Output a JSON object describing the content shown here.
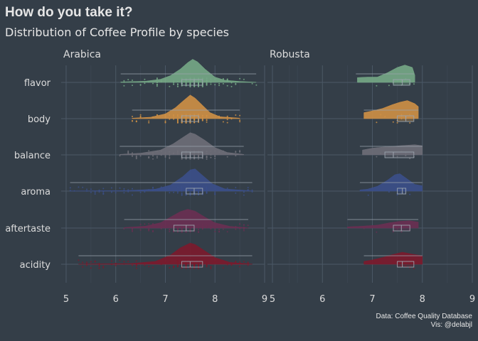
{
  "header": {
    "title": "How do you take it?",
    "subtitle": "Distribution of Coffee Profile by species"
  },
  "caption": {
    "line1": "Data: Coffee Quality Database",
    "line2": "Vis: @delabjl"
  },
  "chart_data": {
    "type": "raincloud",
    "facets": [
      "Arabica",
      "Robusta"
    ],
    "categories": [
      "flavor",
      "body",
      "balance",
      "aroma",
      "aftertaste",
      "acidity"
    ],
    "xlim": [
      4.9,
      9
    ],
    "x_ticks": [
      5,
      6,
      7,
      8,
      9
    ],
    "grid": true,
    "colors": {
      "flavor": "#76a886",
      "body": "#cf9045",
      "balance": "#6e6e78",
      "aroma": "#3b4f8a",
      "aftertaste": "#6a2f52",
      "acidity": "#7c1a2c"
    },
    "panels": [
      {
        "name": "Arabica",
        "series": [
          {
            "name": "flavor",
            "min": 6.1,
            "q1": 7.33,
            "median": 7.58,
            "q3": 7.75,
            "max": 8.83,
            "density": [
              [
                6.1,
                0.02
              ],
              [
                6.6,
                0.05
              ],
              [
                6.9,
                0.13
              ],
              [
                7.1,
                0.28
              ],
              [
                7.3,
                0.55
              ],
              [
                7.45,
                0.82
              ],
              [
                7.55,
                0.96
              ],
              [
                7.65,
                0.85
              ],
              [
                7.8,
                0.55
              ],
              [
                8.0,
                0.22
              ],
              [
                8.2,
                0.09
              ],
              [
                8.5,
                0.04
              ],
              [
                8.83,
                0.01
              ]
            ]
          },
          {
            "name": "body",
            "min": 6.33,
            "q1": 7.33,
            "median": 7.5,
            "q3": 7.67,
            "max": 8.5,
            "density": [
              [
                6.33,
                0.02
              ],
              [
                6.7,
                0.06
              ],
              [
                7.0,
                0.2
              ],
              [
                7.2,
                0.45
              ],
              [
                7.35,
                0.72
              ],
              [
                7.5,
                0.98
              ],
              [
                7.6,
                0.85
              ],
              [
                7.75,
                0.55
              ],
              [
                7.9,
                0.25
              ],
              [
                8.1,
                0.08
              ],
              [
                8.5,
                0.02
              ]
            ]
          },
          {
            "name": "balance",
            "min": 6.08,
            "q1": 7.33,
            "median": 7.5,
            "q3": 7.75,
            "max": 8.58,
            "density": [
              [
                6.08,
                0.02
              ],
              [
                6.5,
                0.07
              ],
              [
                6.9,
                0.2
              ],
              [
                7.15,
                0.45
              ],
              [
                7.35,
                0.72
              ],
              [
                7.5,
                0.92
              ],
              [
                7.6,
                0.86
              ],
              [
                7.8,
                0.6
              ],
              [
                8.0,
                0.3
              ],
              [
                8.25,
                0.1
              ],
              [
                8.58,
                0.02
              ]
            ]
          },
          {
            "name": "aroma",
            "min": 5.08,
            "q1": 7.42,
            "median": 7.58,
            "q3": 7.75,
            "max": 8.75,
            "density": [
              [
                5.08,
                0.01
              ],
              [
                6.2,
                0.02
              ],
              [
                6.8,
                0.08
              ],
              [
                7.1,
                0.25
              ],
              [
                7.35,
                0.6
              ],
              [
                7.5,
                0.88
              ],
              [
                7.6,
                0.92
              ],
              [
                7.75,
                0.65
              ],
              [
                7.95,
                0.3
              ],
              [
                8.2,
                0.09
              ],
              [
                8.75,
                0.01
              ]
            ]
          },
          {
            "name": "aftertaste",
            "min": 6.17,
            "q1": 7.17,
            "median": 7.42,
            "q3": 7.58,
            "max": 8.67,
            "density": [
              [
                6.17,
                0.02
              ],
              [
                6.6,
                0.08
              ],
              [
                6.9,
                0.22
              ],
              [
                7.1,
                0.45
              ],
              [
                7.3,
                0.68
              ],
              [
                7.45,
                0.78
              ],
              [
                7.6,
                0.7
              ],
              [
                7.8,
                0.45
              ],
              [
                8.0,
                0.22
              ],
              [
                8.3,
                0.07
              ],
              [
                8.67,
                0.01
              ]
            ]
          },
          {
            "name": "acidity",
            "min": 5.25,
            "q1": 7.33,
            "median": 7.5,
            "q3": 7.75,
            "max": 8.75,
            "density": [
              [
                5.25,
                0.01
              ],
              [
                6.3,
                0.03
              ],
              [
                6.8,
                0.12
              ],
              [
                7.1,
                0.38
              ],
              [
                7.3,
                0.68
              ],
              [
                7.5,
                0.88
              ],
              [
                7.6,
                0.82
              ],
              [
                7.8,
                0.55
              ],
              [
                8.0,
                0.28
              ],
              [
                8.3,
                0.08
              ],
              [
                8.75,
                0.01
              ]
            ]
          }
        ]
      },
      {
        "name": "Robusta",
        "series": [
          {
            "name": "flavor",
            "min": 6.67,
            "q1": 7.42,
            "median": 7.6,
            "q3": 7.75,
            "max": 7.83,
            "density": [
              [
                6.7,
                0.2
              ],
              [
                6.9,
                0.22
              ],
              [
                7.1,
                0.22
              ],
              [
                7.3,
                0.4
              ],
              [
                7.5,
                0.62
              ],
              [
                7.65,
                0.72
              ],
              [
                7.8,
                0.62
              ],
              [
                7.85,
                0.3
              ]
            ]
          },
          {
            "name": "body",
            "min": 6.83,
            "q1": 7.5,
            "median": 7.67,
            "q3": 7.83,
            "max": 7.92,
            "density": [
              [
                6.83,
                0.25
              ],
              [
                7.0,
                0.32
              ],
              [
                7.2,
                0.42
              ],
              [
                7.4,
                0.58
              ],
              [
                7.55,
                0.68
              ],
              [
                7.7,
                0.75
              ],
              [
                7.85,
                0.62
              ],
              [
                7.92,
                0.5
              ]
            ]
          },
          {
            "name": "balance",
            "min": 6.75,
            "q1": 7.25,
            "median": 7.42,
            "q3": 7.83,
            "max": 8.0,
            "density": [
              [
                6.8,
                0.2
              ],
              [
                7.0,
                0.28
              ],
              [
                7.2,
                0.32
              ],
              [
                7.4,
                0.35
              ],
              [
                7.55,
                0.38
              ],
              [
                7.7,
                0.4
              ],
              [
                7.85,
                0.42
              ],
              [
                8.0,
                0.38
              ]
            ]
          },
          {
            "name": "aroma",
            "min": 6.75,
            "q1": 7.5,
            "median": 7.6,
            "q3": 7.67,
            "max": 8.0,
            "density": [
              [
                6.75,
                0.05
              ],
              [
                6.9,
                0.08
              ],
              [
                7.1,
                0.2
              ],
              [
                7.3,
                0.45
              ],
              [
                7.45,
                0.68
              ],
              [
                7.55,
                0.72
              ],
              [
                7.7,
                0.5
              ],
              [
                7.85,
                0.28
              ],
              [
                8.0,
                0.22
              ]
            ]
          },
          {
            "name": "aftertaste",
            "min": 6.5,
            "q1": 7.42,
            "median": 7.58,
            "q3": 7.75,
            "max": 7.92,
            "density": [
              [
                6.5,
                0.05
              ],
              [
                6.8,
                0.08
              ],
              [
                7.1,
                0.12
              ],
              [
                7.35,
                0.22
              ],
              [
                7.55,
                0.28
              ],
              [
                7.75,
                0.3
              ],
              [
                7.92,
                0.25
              ]
            ]
          },
          {
            "name": "acidity",
            "min": 6.83,
            "q1": 7.5,
            "median": 7.6,
            "q3": 7.83,
            "max": 8.0,
            "density": [
              [
                6.83,
                0.12
              ],
              [
                7.0,
                0.18
              ],
              [
                7.2,
                0.28
              ],
              [
                7.4,
                0.4
              ],
              [
                7.6,
                0.5
              ],
              [
                7.8,
                0.42
              ],
              [
                8.0,
                0.35
              ]
            ]
          }
        ]
      }
    ]
  }
}
